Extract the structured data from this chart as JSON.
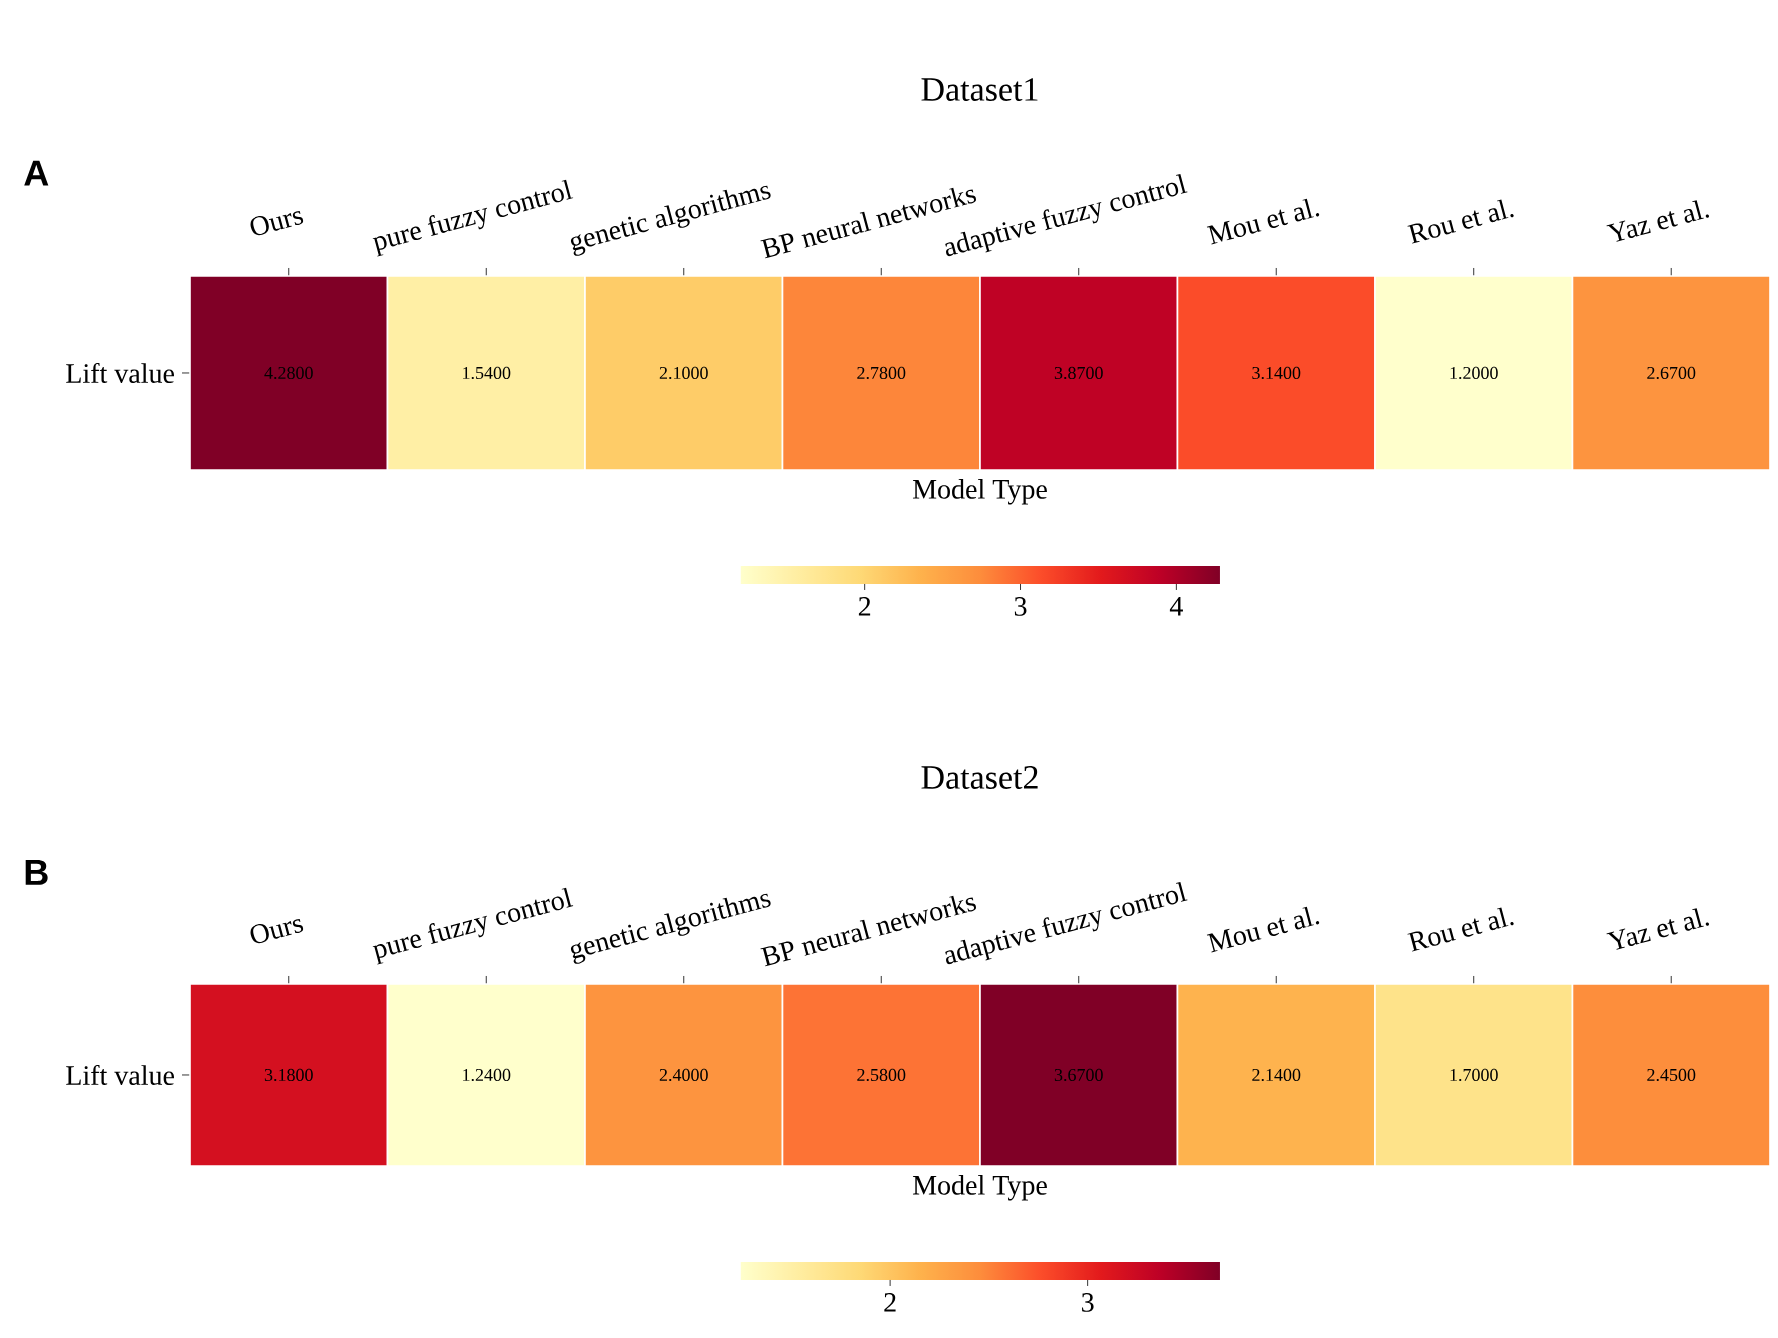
{
  "chart_data": [
    {
      "type": "heatmap",
      "title": "Dataset1",
      "xlabel": "Model Type",
      "annotations": [
        "A"
      ],
      "categories": [
        "Ours",
        "pure fuzzy control",
        "genetic algorithms",
        "BP neural networks",
        "adaptive fuzzy control",
        "Mou et al.",
        "Rou et al.",
        "Yaz et al."
      ],
      "y_categories": [
        "Lift value"
      ],
      "cells": [
        [
          4.28,
          1.54,
          2.1,
          2.78,
          3.87,
          3.14,
          1.2,
          2.67
        ]
      ],
      "cell_labels": [
        [
          "4.2800",
          "1.5400",
          "2.1000",
          "2.7800",
          "3.8700",
          "3.1400",
          "1.2000",
          "2.6700"
        ]
      ],
      "clim": [
        1.2,
        4.28
      ],
      "cticks": [
        2,
        3,
        4
      ]
    },
    {
      "type": "heatmap",
      "title": "Dataset2",
      "xlabel": "Model Type",
      "annotations": [
        "B"
      ],
      "categories": [
        "Ours",
        "pure fuzzy control",
        "genetic algorithms",
        "BP neural networks",
        "adaptive fuzzy control",
        "Mou et al.",
        "Rou et al.",
        "Yaz et al."
      ],
      "y_categories": [
        "Lift value"
      ],
      "cells": [
        [
          3.18,
          1.24,
          2.4,
          2.58,
          3.67,
          2.14,
          1.7,
          2.45
        ]
      ],
      "cell_labels": [
        [
          "3.1800",
          "1.2400",
          "2.4000",
          "2.5800",
          "3.6700",
          "2.1400",
          "1.7000",
          "2.4500"
        ]
      ],
      "clim": [
        1.24,
        3.67
      ],
      "cticks": [
        2,
        3
      ]
    }
  ]
}
